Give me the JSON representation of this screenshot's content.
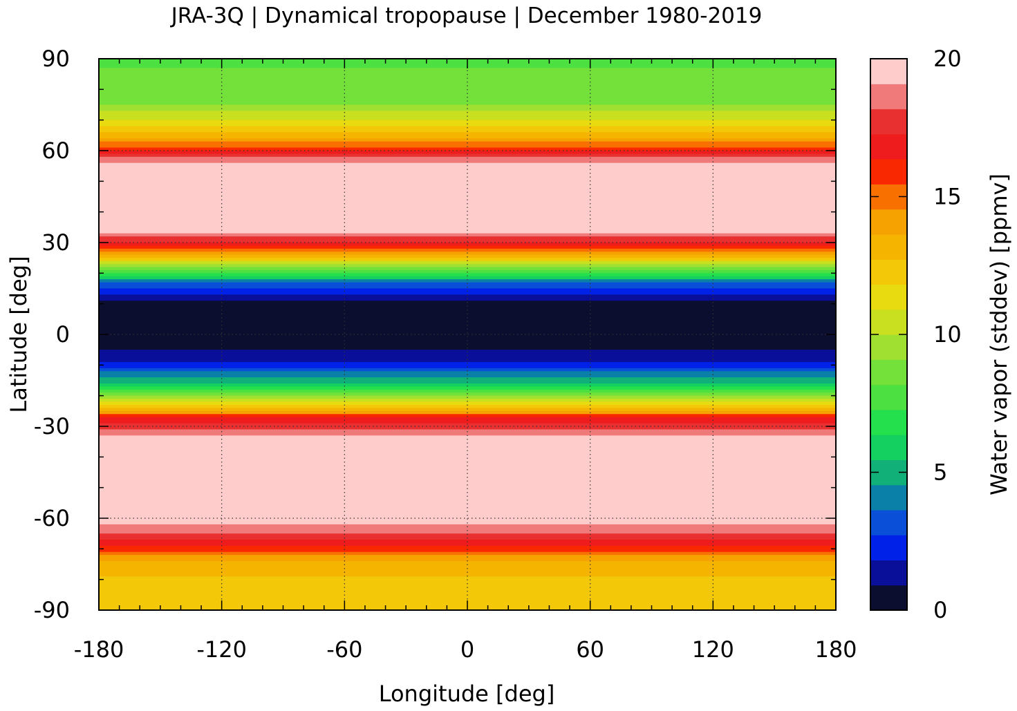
{
  "chart_data": {
    "type": "heatmap",
    "title": "JRA-3Q | Dynamical tropopause | December 1980-2019",
    "xlabel": "Longitude [deg]",
    "ylabel": "Latitude [deg]",
    "colorbar_label": "Water vapor (stddev) [ppmv]",
    "xlim": [
      -180,
      180
    ],
    "ylim": [
      -90,
      90
    ],
    "x_ticks": [
      "-180",
      "-120",
      "-60",
      "0",
      "60",
      "120",
      "180"
    ],
    "y_ticks": [
      "-90",
      "-60",
      "-30",
      "0",
      "30",
      "60",
      "90"
    ],
    "colorbar_ticks": [
      "0",
      "5",
      "10",
      "15",
      "20"
    ],
    "colorbar_range": [
      0,
      20
    ],
    "grid": true,
    "colorscale": [
      "#0c0e30",
      "#0a0f9a",
      "#0022e8",
      "#0a4fd8",
      "#0a80a8",
      "#10b078",
      "#14d060",
      "#24e04c",
      "#4ce040",
      "#74e03a",
      "#a0e030",
      "#c8e020",
      "#e8dc10",
      "#f2c808",
      "#f4b400",
      "#f6a200",
      "#f87000",
      "#fa2800",
      "#ee1c1c",
      "#e83030",
      "#f07a7a",
      "#ffcccc"
    ],
    "zonal_profile": [
      {
        "lat": 90,
        "value": 8
      },
      {
        "lat": 75,
        "value": 9
      },
      {
        "lat": 65,
        "value": 13
      },
      {
        "lat": 55,
        "value": 20
      },
      {
        "lat": 35,
        "value": 20
      },
      {
        "lat": 28,
        "value": 16
      },
      {
        "lat": 22,
        "value": 9
      },
      {
        "lat": 16,
        "value": 3
      },
      {
        "lat": 10,
        "value": 0.5
      },
      {
        "lat": 0,
        "value": 0.3
      },
      {
        "lat": -8,
        "value": 1.2
      },
      {
        "lat": -15,
        "value": 5
      },
      {
        "lat": -22,
        "value": 11
      },
      {
        "lat": -28,
        "value": 17
      },
      {
        "lat": -35,
        "value": 20
      },
      {
        "lat": -60,
        "value": 20
      },
      {
        "lat": -68,
        "value": 17
      },
      {
        "lat": -75,
        "value": 13
      },
      {
        "lat": -90,
        "value": 12
      }
    ]
  }
}
